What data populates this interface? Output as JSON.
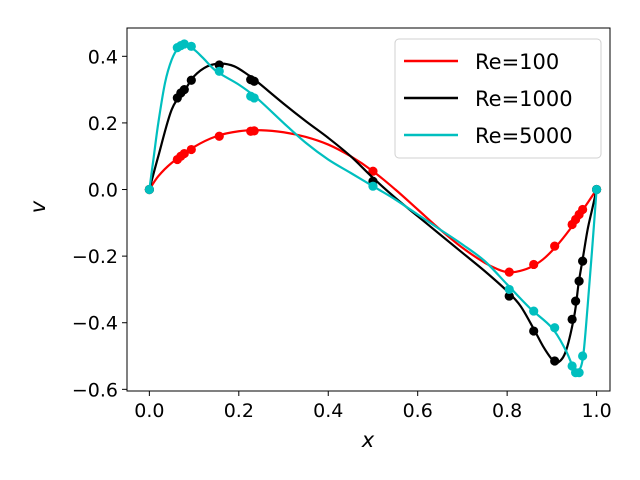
{
  "chart_data": {
    "type": "line",
    "title": "",
    "xlabel": "x",
    "ylabel": "v",
    "xlim": [
      -0.05,
      1.03
    ],
    "ylim": [
      -0.605,
      0.485
    ],
    "xticks": [
      0.0,
      0.2,
      0.4,
      0.6,
      0.8,
      1.0
    ],
    "xtick_labels": [
      "0.0",
      "0.2",
      "0.4",
      "0.6",
      "0.8",
      "1.0"
    ],
    "yticks": [
      0.4,
      0.2,
      0.0,
      -0.2,
      -0.4,
      -0.6
    ],
    "ytick_labels": [
      "0.4",
      "0.2",
      "0.0",
      "−0.2",
      "−0.4",
      "−0.6"
    ],
    "grid": false,
    "legend_position": "top-right",
    "series": [
      {
        "name": "Re=100",
        "color": "#ff0000",
        "curve": [
          [
            0.0,
            0.0
          ],
          [
            0.02,
            0.04
          ],
          [
            0.05,
            0.08
          ],
          [
            0.1,
            0.128
          ],
          [
            0.15,
            0.16
          ],
          [
            0.2,
            0.175
          ],
          [
            0.25,
            0.178
          ],
          [
            0.3,
            0.172
          ],
          [
            0.35,
            0.158
          ],
          [
            0.4,
            0.135
          ],
          [
            0.45,
            0.1
          ],
          [
            0.5,
            0.055
          ],
          [
            0.55,
            0.0
          ],
          [
            0.6,
            -0.06
          ],
          [
            0.65,
            -0.12
          ],
          [
            0.7,
            -0.175
          ],
          [
            0.75,
            -0.22
          ],
          [
            0.78,
            -0.24
          ],
          [
            0.8,
            -0.248
          ],
          [
            0.82,
            -0.247
          ],
          [
            0.85,
            -0.235
          ],
          [
            0.88,
            -0.21
          ],
          [
            0.91,
            -0.17
          ],
          [
            0.94,
            -0.12
          ],
          [
            0.96,
            -0.08
          ],
          [
            0.98,
            -0.04
          ],
          [
            1.0,
            0.0
          ]
        ],
        "points": [
          [
            0.0,
            0.0
          ],
          [
            0.0625,
            0.09
          ],
          [
            0.0703,
            0.1
          ],
          [
            0.0781,
            0.108
          ],
          [
            0.0938,
            0.12
          ],
          [
            0.1563,
            0.16
          ],
          [
            0.2266,
            0.175
          ],
          [
            0.2344,
            0.176
          ],
          [
            0.5,
            0.055
          ],
          [
            0.8047,
            -0.248
          ],
          [
            0.8594,
            -0.225
          ],
          [
            0.9063,
            -0.17
          ],
          [
            0.9453,
            -0.105
          ],
          [
            0.9531,
            -0.09
          ],
          [
            0.9609,
            -0.075
          ],
          [
            0.9688,
            -0.06
          ],
          [
            1.0,
            0.0
          ]
        ]
      },
      {
        "name": "Re=1000",
        "color": "#000000",
        "curve": [
          [
            0.0,
            0.0
          ],
          [
            0.02,
            0.1
          ],
          [
            0.05,
            0.24
          ],
          [
            0.08,
            0.3
          ],
          [
            0.1,
            0.34
          ],
          [
            0.13,
            0.37
          ],
          [
            0.16,
            0.378
          ],
          [
            0.19,
            0.37
          ],
          [
            0.22,
            0.345
          ],
          [
            0.24,
            0.325
          ],
          [
            0.3,
            0.258
          ],
          [
            0.35,
            0.205
          ],
          [
            0.4,
            0.155
          ],
          [
            0.45,
            0.1
          ],
          [
            0.5,
            0.035
          ],
          [
            0.55,
            -0.025
          ],
          [
            0.6,
            -0.08
          ],
          [
            0.65,
            -0.135
          ],
          [
            0.7,
            -0.19
          ],
          [
            0.75,
            -0.245
          ],
          [
            0.8,
            -0.305
          ],
          [
            0.83,
            -0.35
          ],
          [
            0.86,
            -0.42
          ],
          [
            0.88,
            -0.47
          ],
          [
            0.9,
            -0.51
          ],
          [
            0.91,
            -0.522
          ],
          [
            0.93,
            -0.49
          ],
          [
            0.95,
            -0.38
          ],
          [
            0.96,
            -0.28
          ],
          [
            0.97,
            -0.2
          ],
          [
            0.98,
            -0.12
          ],
          [
            0.99,
            -0.06
          ],
          [
            1.0,
            0.0
          ]
        ],
        "points": [
          [
            0.0,
            0.0
          ],
          [
            0.0625,
            0.275
          ],
          [
            0.0703,
            0.29
          ],
          [
            0.0781,
            0.3
          ],
          [
            0.0938,
            0.328
          ],
          [
            0.1563,
            0.374
          ],
          [
            0.2266,
            0.33
          ],
          [
            0.2344,
            0.325
          ],
          [
            0.5,
            0.025
          ],
          [
            0.8047,
            -0.32
          ],
          [
            0.8594,
            -0.425
          ],
          [
            0.9063,
            -0.515
          ],
          [
            0.9453,
            -0.39
          ],
          [
            0.9531,
            -0.335
          ],
          [
            0.9609,
            -0.275
          ],
          [
            0.9688,
            -0.215
          ],
          [
            1.0,
            0.0
          ]
        ]
      },
      {
        "name": "Re=5000",
        "color": "#00bfbf",
        "curve": [
          [
            0.0,
            0.0
          ],
          [
            0.01,
            0.1
          ],
          [
            0.02,
            0.2
          ],
          [
            0.035,
            0.32
          ],
          [
            0.05,
            0.39
          ],
          [
            0.065,
            0.425
          ],
          [
            0.08,
            0.432
          ],
          [
            0.1,
            0.42
          ],
          [
            0.12,
            0.395
          ],
          [
            0.15,
            0.355
          ],
          [
            0.2,
            0.315
          ],
          [
            0.24,
            0.275
          ],
          [
            0.3,
            0.2
          ],
          [
            0.35,
            0.14
          ],
          [
            0.4,
            0.09
          ],
          [
            0.45,
            0.05
          ],
          [
            0.5,
            0.01
          ],
          [
            0.55,
            -0.03
          ],
          [
            0.6,
            -0.075
          ],
          [
            0.65,
            -0.12
          ],
          [
            0.7,
            -0.165
          ],
          [
            0.75,
            -0.215
          ],
          [
            0.8,
            -0.285
          ],
          [
            0.85,
            -0.355
          ],
          [
            0.9,
            -0.415
          ],
          [
            0.93,
            -0.48
          ],
          [
            0.95,
            -0.54
          ],
          [
            0.96,
            -0.545
          ],
          [
            0.97,
            -0.5
          ],
          [
            0.98,
            -0.35
          ],
          [
            0.99,
            -0.18
          ],
          [
            1.0,
            0.0
          ]
        ],
        "points": [
          [
            0.0,
            0.0
          ],
          [
            0.0625,
            0.426
          ],
          [
            0.0703,
            0.432
          ],
          [
            0.0781,
            0.437
          ],
          [
            0.0938,
            0.43
          ],
          [
            0.1563,
            0.355
          ],
          [
            0.2266,
            0.28
          ],
          [
            0.2344,
            0.275
          ],
          [
            0.5,
            0.01
          ],
          [
            0.8047,
            -0.3
          ],
          [
            0.8594,
            -0.365
          ],
          [
            0.9063,
            -0.415
          ],
          [
            0.9453,
            -0.53
          ],
          [
            0.9531,
            -0.55
          ],
          [
            0.9609,
            -0.55
          ],
          [
            0.9688,
            -0.5
          ],
          [
            1.0,
            0.0
          ]
        ]
      }
    ]
  }
}
